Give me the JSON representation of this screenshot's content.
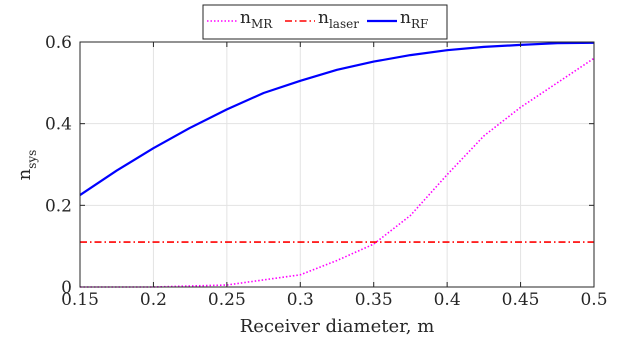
{
  "chart_data": {
    "type": "line",
    "xlabel": "Receiver diameter, m",
    "ylabel": {
      "main": "n",
      "sub": "sys"
    },
    "xlim": [
      0.15,
      0.5
    ],
    "ylim": [
      0,
      0.6
    ],
    "xticks": [
      "0.15",
      "0.2",
      "0.25",
      "0.3",
      "0.35",
      "0.4",
      "0.45",
      "0.5"
    ],
    "yticks": [
      "0",
      "0.2",
      "0.4",
      "0.6"
    ],
    "grid": true,
    "legend_position": "top-center",
    "series": [
      {
        "legend_main": "n",
        "legend_sub": "MR",
        "color": "#ff00ff",
        "style": "dotted",
        "x": [
          0.15,
          0.2,
          0.25,
          0.3,
          0.325,
          0.35,
          0.375,
          0.4,
          0.425,
          0.45,
          0.475,
          0.5
        ],
        "y": [
          0.0,
          0.0,
          0.005,
          0.03,
          0.065,
          0.105,
          0.175,
          0.275,
          0.37,
          0.44,
          0.5,
          0.56
        ]
      },
      {
        "legend_main": "n",
        "legend_sub": "laser",
        "color": "#ff0000",
        "style": "dashdot",
        "x": [
          0.15,
          0.5
        ],
        "y": [
          0.11,
          0.11
        ]
      },
      {
        "legend_main": "n",
        "legend_sub": "RF",
        "color": "#0000ff",
        "style": "solid",
        "x": [
          0.15,
          0.175,
          0.2,
          0.225,
          0.25,
          0.275,
          0.3,
          0.325,
          0.35,
          0.375,
          0.4,
          0.425,
          0.45,
          0.475,
          0.5
        ],
        "y": [
          0.225,
          0.285,
          0.34,
          0.39,
          0.435,
          0.475,
          0.505,
          0.532,
          0.552,
          0.568,
          0.58,
          0.588,
          0.593,
          0.597,
          0.598
        ]
      }
    ]
  }
}
